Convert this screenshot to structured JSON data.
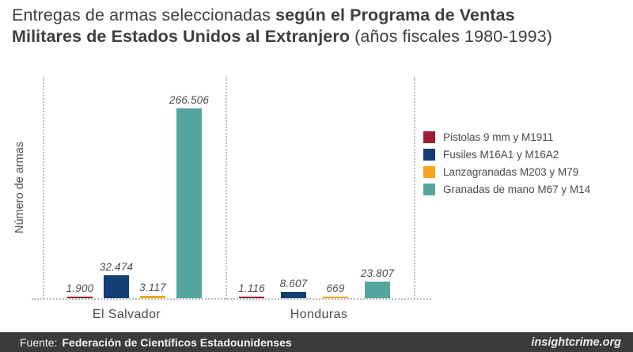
{
  "title": {
    "regular_start": "Entregas de armas seleccionadas ",
    "bold_line1": "según el Programa de Ventas",
    "bold_line2": "Militares de Estados Unidos al Extranjero",
    "regular_end": " (años fiscales 1980-1993)"
  },
  "chart_data": {
    "type": "bar",
    "title": "Entregas de armas seleccionadas según el Programa de Ventas Militares de Estados Unidos al Extranjero (años fiscales 1980-1993)",
    "ylabel": "Número de armas",
    "xlabel": "",
    "categories": [
      "El Salvador",
      "Honduras"
    ],
    "series": [
      {
        "name": "Pistolas 9 mm y M1911",
        "color": "#9b1c33",
        "values": [
          1900,
          1116
        ],
        "labels": [
          "1.900",
          "1.116"
        ]
      },
      {
        "name": "Fusiles M16A1 y M16A2",
        "color": "#133e73",
        "values": [
          32474,
          8607
        ],
        "labels": [
          "32.474",
          "8.607"
        ]
      },
      {
        "name": "Lanzagranadas M203 y M79",
        "color": "#f7a51d",
        "values": [
          3117,
          669
        ],
        "labels": [
          "3.117",
          "669"
        ]
      },
      {
        "name": "Granadas de mano M67 y M14",
        "color": "#54a69e",
        "values": [
          266506,
          23807
        ],
        "labels": [
          "266.506",
          "23.807"
        ]
      }
    ],
    "ylim": [
      0,
      280000
    ],
    "grid": false,
    "legend_position": "right",
    "value_labels": true
  },
  "footer": {
    "source_prefix": "Fuente:",
    "source_name": "Federación de Científicos Estadounidenses",
    "brand": "insightcrime.org"
  }
}
